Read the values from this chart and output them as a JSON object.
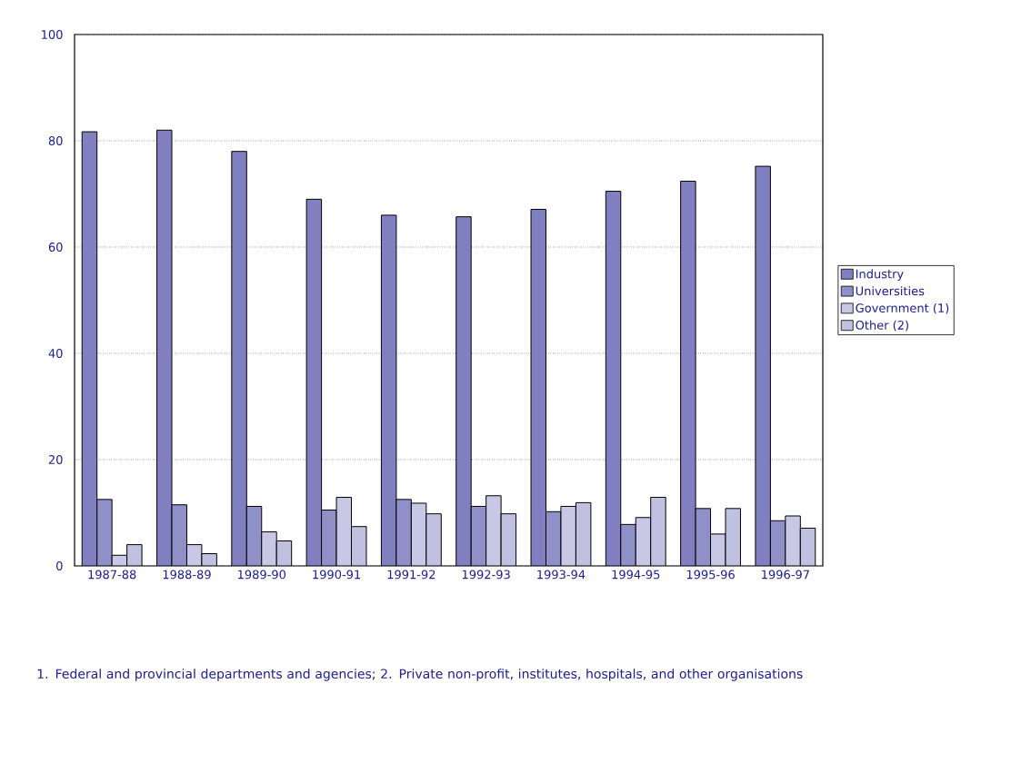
{
  "chart_data": {
    "type": "bar",
    "categories": [
      "1987-88",
      "1988-89",
      "1989-90",
      "1990-91",
      "1991-92",
      "1992-93",
      "1993-94",
      "1994-95",
      "1995-96",
      "1996-97"
    ],
    "series": [
      {
        "name": "Industry",
        "color": "#8080c0",
        "values": [
          81.7,
          82.0,
          78.0,
          69.0,
          66.0,
          65.7,
          67.1,
          70.5,
          72.4,
          75.2
        ]
      },
      {
        "name": "Universities",
        "color": "#9090c8",
        "values": [
          12.5,
          11.5,
          11.2,
          10.5,
          12.5,
          11.2,
          10.2,
          7.8,
          10.8,
          8.5
        ]
      },
      {
        "name": "Government (1)",
        "color": "#c8c8e6",
        "values": [
          2.0,
          4.0,
          6.4,
          12.9,
          11.8,
          13.2,
          11.2,
          9.1,
          6.0,
          9.4
        ]
      },
      {
        "name": "Other (2)",
        "color": "#c0c0e0",
        "values": [
          4.0,
          2.3,
          4.7,
          7.4,
          9.8,
          9.8,
          11.9,
          12.9,
          10.8,
          7.1
        ]
      }
    ],
    "ylim": [
      0,
      100
    ],
    "yticks": [
      0,
      20,
      40,
      60,
      80,
      100
    ],
    "grid": "y",
    "legend": "right",
    "annotations": [
      "1. Federal and provincial departments and agencies; 2. Private non-profit, institutes, hospitals, and other organisations"
    ]
  }
}
